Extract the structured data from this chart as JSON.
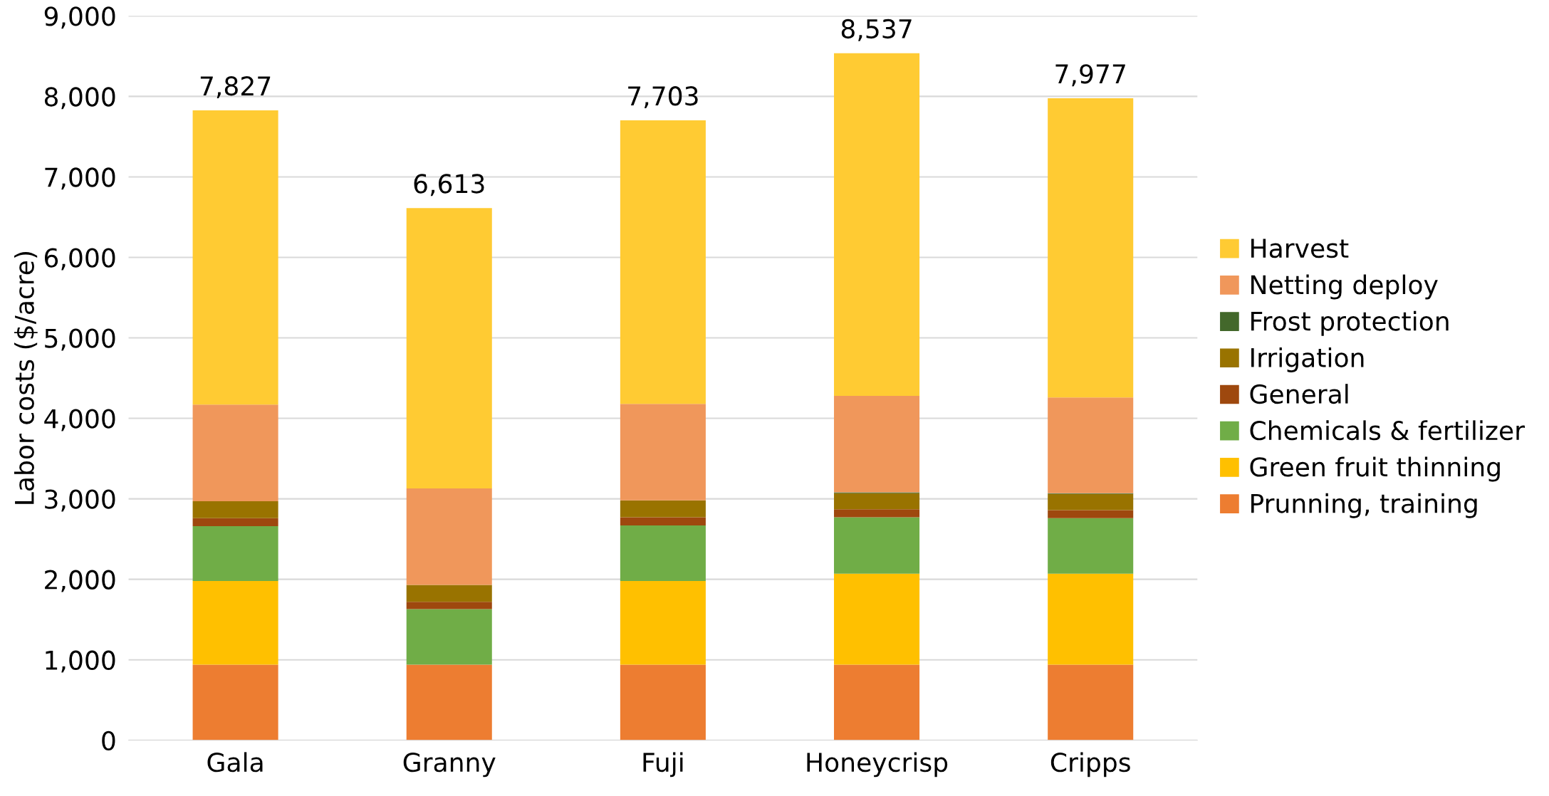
{
  "chart_data": {
    "type": "bar",
    "stacked": true,
    "ylabel": "Labor costs ($/acre)",
    "categories": [
      "Gala",
      "Granny",
      "Fuji",
      "Honeycrisp",
      "Cripps"
    ],
    "series": [
      {
        "name": "Prunning, training",
        "color": "#ed7d31",
        "values": [
          940,
          940,
          940,
          940,
          940
        ]
      },
      {
        "name": "Green fruit thinning",
        "color": "#ffc000",
        "values": [
          1040,
          0,
          1040,
          1130,
          1130
        ]
      },
      {
        "name": "Chemicals & fertilizer",
        "color": "#70ad47",
        "values": [
          680,
          690,
          690,
          700,
          690
        ]
      },
      {
        "name": "General",
        "color": "#9e480e",
        "values": [
          100,
          90,
          100,
          100,
          100
        ]
      },
      {
        "name": "Irrigation",
        "color": "#997300",
        "values": [
          210,
          210,
          210,
          200,
          200
        ]
      },
      {
        "name": "Frost protection",
        "color": "#43682b",
        "values": [
          0,
          0,
          0,
          10,
          10
        ]
      },
      {
        "name": "Netting deploy",
        "color": "#f0975b",
        "values": [
          1200,
          1200,
          1200,
          1200,
          1190
        ]
      },
      {
        "name": "Harvest",
        "color": "#ffcb33",
        "values": [
          3657,
          3483,
          3523,
          4257,
          3717
        ]
      }
    ],
    "totals": [
      "7,827",
      "6,613",
      "7,703",
      "8,537",
      "7,977"
    ],
    "ylim": [
      0,
      9000
    ],
    "yticks": [
      {
        "value": 0,
        "label": "0"
      },
      {
        "value": 1000,
        "label": "1,000"
      },
      {
        "value": 2000,
        "label": "2,000"
      },
      {
        "value": 3000,
        "label": "3,000"
      },
      {
        "value": 4000,
        "label": "4,000"
      },
      {
        "value": 5000,
        "label": "5,000"
      },
      {
        "value": 6000,
        "label": "6,000"
      },
      {
        "value": 7000,
        "label": "7,000"
      },
      {
        "value": 8000,
        "label": "8,000"
      },
      {
        "value": 9000,
        "label": "9,000"
      }
    ],
    "grid": "y",
    "legend": "right"
  }
}
